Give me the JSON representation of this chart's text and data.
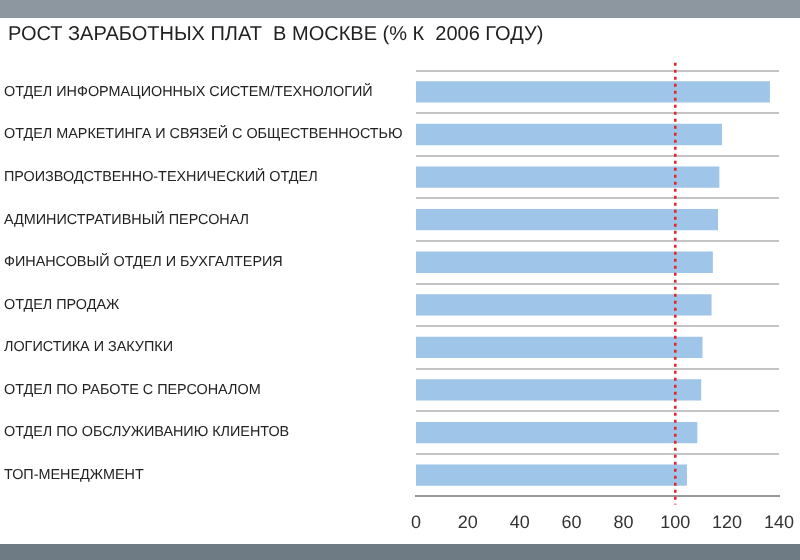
{
  "chart_data": {
    "type": "bar",
    "orientation": "horizontal",
    "title": "РОСТ ЗАРАБОТНЫХ ПЛАТ  В МОСКВЕ (% К  2006 ГОДУ)",
    "categories": [
      "ОТДЕЛ ИНФОРМАЦИОННЫХ СИСТЕМ/ТЕХНОЛОГИЙ",
      "ОТДЕЛ МАРКЕТИНГА И СВЯЗЕЙ С ОБЩЕСТВЕННОСТЬЮ",
      "ПРОИЗВОДСТВЕННО-ТЕХНИЧЕСКИЙ ОТДЕЛ",
      "АДМИНИСТРАТИВНЫЙ ПЕРСОНАЛ",
      "ФИНАНСОВЫЙ ОТДЕЛ И БУХГАЛТЕРИЯ",
      "ОТДЕЛ ПРОДАЖ",
      "ЛОГИСТИКА И ЗАКУПКИ",
      "ОТДЕЛ ПО РАБОТЕ С ПЕРСОНАЛОМ",
      "ОТДЕЛ ПО ОБСЛУЖИВАНИЮ КЛИЕНТОВ",
      "ТОП-МЕНЕДЖМЕНТ"
    ],
    "values": [
      136.5,
      118,
      117,
      116.5,
      114.5,
      114,
      110.5,
      110,
      108.5,
      104.5
    ],
    "color": "#9fc5e8",
    "xlim": [
      0,
      140
    ],
    "xticks": [
      0,
      20,
      40,
      60,
      80,
      100,
      120,
      140
    ],
    "grid": "y",
    "ref_lines": [
      {
        "axis": "x",
        "value": 100,
        "color": "#e0282c",
        "line_style": "dotted"
      }
    ]
  }
}
